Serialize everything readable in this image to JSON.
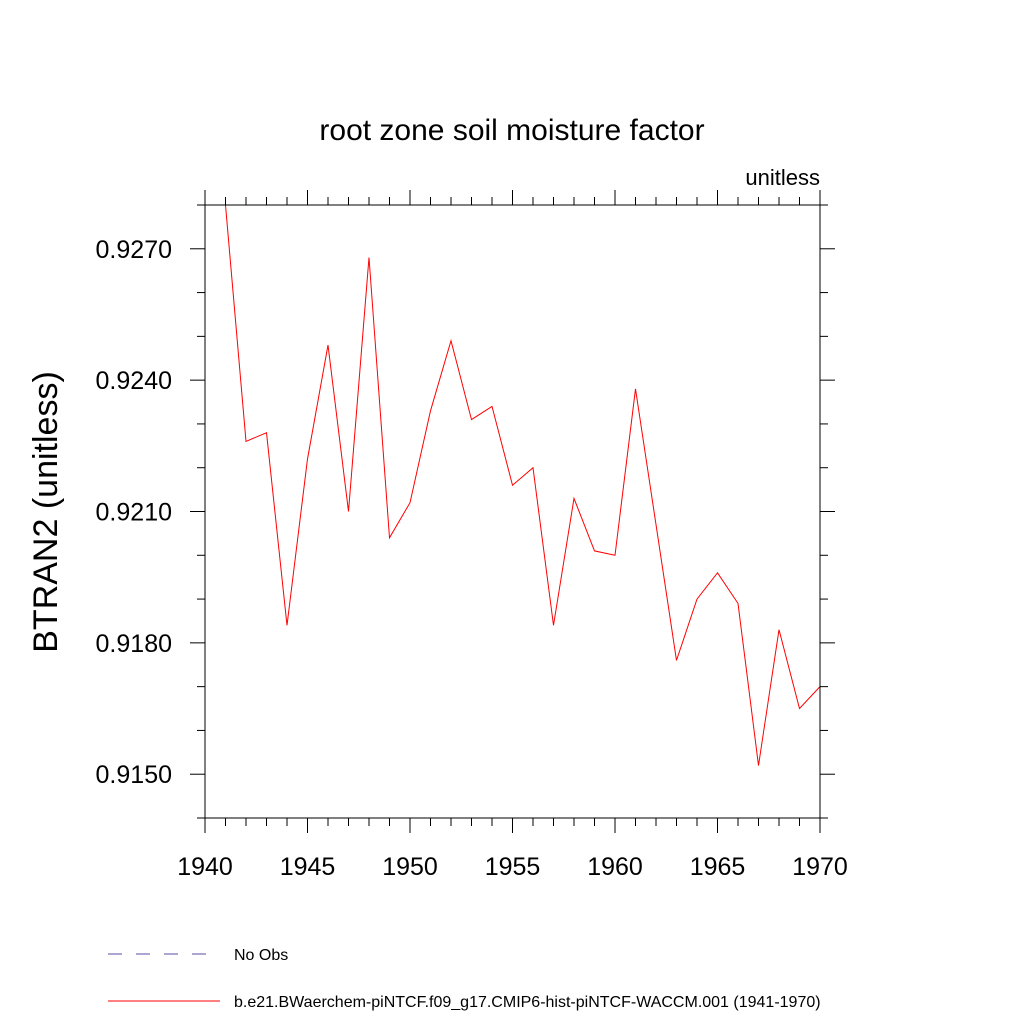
{
  "chart_data": {
    "type": "line",
    "title": "root zone soil moisture factor",
    "units_label": "unitless",
    "ylabel": "BTRAN2  (unitless)",
    "xlabel": "",
    "xlim": [
      1940,
      1970
    ],
    "ylim": [
      0.914,
      0.928
    ],
    "xticks": [
      1940,
      1945,
      1950,
      1955,
      1960,
      1965,
      1970
    ],
    "yticks": [
      0.915,
      0.918,
      0.921,
      0.924,
      0.927
    ],
    "xtick_labels": [
      "1940",
      "1945",
      "1950",
      "1955",
      "1960",
      "1965",
      "1970"
    ],
    "ytick_labels": [
      "0.9150",
      "0.9180",
      "0.9210",
      "0.9240",
      "0.9270"
    ],
    "grid": false,
    "legend_position": "bottom",
    "series": [
      {
        "name": "b.e21.BWaerchem-piNTCF.f09_g17.CMIP6-hist-piNTCF-WACCM.001 (1941-1970)",
        "color": "#ff0000",
        "style": "solid",
        "x": [
          1941,
          1942,
          1943,
          1944,
          1945,
          1946,
          1947,
          1948,
          1949,
          1950,
          1951,
          1952,
          1953,
          1954,
          1955,
          1956,
          1957,
          1958,
          1959,
          1960,
          1961,
          1962,
          1963,
          1964,
          1965,
          1966,
          1967,
          1968,
          1969,
          1970
        ],
        "y": [
          0.928,
          0.9226,
          0.9228,
          0.9184,
          0.9222,
          0.9248,
          0.921,
          0.9268,
          0.9204,
          0.9212,
          0.9233,
          0.9249,
          0.9231,
          0.9234,
          0.9216,
          0.922,
          0.9184,
          0.9213,
          0.9201,
          0.92,
          0.9238,
          0.9207,
          0.9176,
          0.919,
          0.9196,
          0.9189,
          0.9152,
          0.9183,
          0.9165,
          0.917
        ]
      },
      {
        "name": "No Obs",
        "color": "#5a4fa6",
        "style": "dashed",
        "x": [],
        "y": []
      }
    ]
  }
}
